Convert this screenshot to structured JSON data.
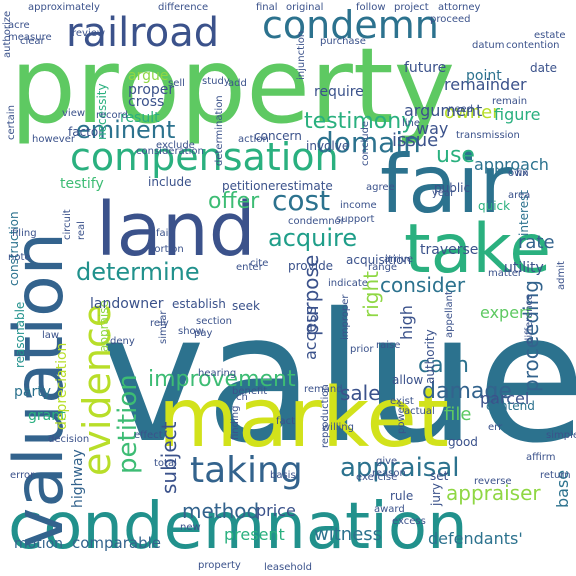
{
  "palette": {
    "background": "#ffffff",
    "lime": "#b8de29",
    "yellow_green": "#d2e21b",
    "green": "#5ec962",
    "light_green": "#8fd744",
    "mint": "#3dbc74",
    "teal_green": "#2ab07f",
    "teal": "#21918c",
    "dark_teal": "#1f9e89",
    "blue_teal": "#2c728e",
    "slate": "#33638d",
    "navy": "#3b528b",
    "indigo": "#443983",
    "purple": "#482677",
    "dark_purple": "#440154"
  },
  "words": [
    {
      "text": "value",
      "color": "#2c728e"
    },
    {
      "text": "property",
      "color": "#5ec962"
    },
    {
      "text": "condemnation",
      "color": "#21918c"
    },
    {
      "text": "market",
      "color": "#d2e21b"
    },
    {
      "text": "land",
      "color": "#3b528b"
    },
    {
      "text": "valuation",
      "color": "#33638d"
    },
    {
      "text": "fair",
      "color": "#2c728e"
    },
    {
      "text": "take",
      "color": "#2ab07f"
    },
    {
      "text": "compensation",
      "color": "#2ab07f"
    },
    {
      "text": "railroad",
      "color": "#3b528b"
    },
    {
      "text": "condemn",
      "color": "#2c728e"
    },
    {
      "text": "evidence",
      "color": "#b8de29"
    },
    {
      "text": "taking",
      "color": "#33638d"
    },
    {
      "text": "appraisal",
      "color": "#2c728e"
    },
    {
      "text": "eminent",
      "color": "#2c728e"
    },
    {
      "text": "domain",
      "color": "#2c728e"
    },
    {
      "text": "cost",
      "color": "#2c728e"
    },
    {
      "text": "determine",
      "color": "#21918c"
    },
    {
      "text": "acquire",
      "color": "#1f9e89"
    },
    {
      "text": "testimony",
      "color": "#2ab07f"
    },
    {
      "text": "offer",
      "color": "#3dbc74"
    },
    {
      "text": "petition",
      "color": "#3dbc74"
    },
    {
      "text": "improvement",
      "color": "#3dbc74"
    },
    {
      "text": "damage",
      "color": "#33638d"
    },
    {
      "text": "appraiser",
      "color": "#8fd744"
    },
    {
      "text": "purpose",
      "color": "#3b528b"
    },
    {
      "text": "right",
      "color": "#8fd744"
    },
    {
      "text": "consider",
      "color": "#2c728e"
    },
    {
      "text": "proceeding",
      "color": "#33638d"
    },
    {
      "text": "sale",
      "color": "#3b528b"
    },
    {
      "text": "cash",
      "color": "#2c728e"
    },
    {
      "text": "witness",
      "color": "#2c728e"
    },
    {
      "text": "method",
      "color": "#33638d"
    },
    {
      "text": "use",
      "color": "#2ab07f"
    },
    {
      "text": "owner",
      "color": "#b8de29"
    },
    {
      "text": "subject",
      "color": "#3b528b"
    },
    {
      "text": "issue",
      "color": "#3b528b"
    },
    {
      "text": "file",
      "color": "#5ec962"
    },
    {
      "text": "defendants'",
      "color": "#2c728e"
    },
    {
      "text": "present",
      "color": "#2ab07f"
    },
    {
      "text": "comparable",
      "color": "#33638d"
    },
    {
      "text": "motion",
      "color": "#33638d"
    },
    {
      "text": "price",
      "color": "#3b528b"
    },
    {
      "text": "base",
      "color": "#2c728e"
    },
    {
      "text": "remainder",
      "color": "#3b528b"
    },
    {
      "text": "argument",
      "color": "#3b528b"
    },
    {
      "text": "way",
      "color": "#3b528b"
    },
    {
      "text": "figure",
      "color": "#2ab07f"
    },
    {
      "text": "rate",
      "color": "#33638d"
    },
    {
      "text": "access",
      "color": "#3b528b"
    },
    {
      "text": "high",
      "color": "#3b528b"
    },
    {
      "text": "parcel",
      "color": "#3b528b"
    },
    {
      "text": "expert",
      "color": "#5ec962"
    },
    {
      "text": "construction",
      "color": "#2c728e"
    },
    {
      "text": "highway",
      "color": "#33638d"
    },
    {
      "text": "grant",
      "color": "#2ab07f"
    },
    {
      "text": "party",
      "color": "#2c728e"
    },
    {
      "text": "reasonable",
      "color": "#21918c"
    },
    {
      "text": "depreciation",
      "color": "#b8de29"
    },
    {
      "text": "appraise",
      "color": "#8fd744"
    },
    {
      "text": "landowner",
      "color": "#3b528b"
    },
    {
      "text": "establish",
      "color": "#3b528b"
    },
    {
      "text": "seek",
      "color": "#3b528b"
    },
    {
      "text": "argue",
      "color": "#8fd744"
    },
    {
      "text": "proper",
      "color": "#3b528b"
    },
    {
      "text": "cross",
      "color": "#3b528b"
    },
    {
      "text": "result",
      "color": "#2ab07f"
    },
    {
      "text": "factor",
      "color": "#3b528b"
    },
    {
      "text": "necessity",
      "color": "#2ab07f"
    },
    {
      "text": "future",
      "color": "#3b528b"
    },
    {
      "text": "point",
      "color": "#2c728e"
    },
    {
      "text": "require",
      "color": "#3b528b"
    },
    {
      "text": "concern",
      "color": "#3b528b"
    },
    {
      "text": "involve",
      "color": "#3b528b"
    },
    {
      "text": "include",
      "color": "#3b528b"
    },
    {
      "text": "petitioner",
      "color": "#3b528b"
    },
    {
      "text": "estimate",
      "color": "#3b528b"
    },
    {
      "text": "testify",
      "color": "#3dbc74"
    },
    {
      "text": "provide",
      "color": "#3b528b"
    },
    {
      "text": "acquisition",
      "color": "#3b528b"
    },
    {
      "text": "traverse",
      "color": "#3b528b"
    },
    {
      "text": "utility",
      "color": "#3b528b"
    },
    {
      "text": "public",
      "color": "#3b528b"
    },
    {
      "text": "approach",
      "color": "#2c728e"
    },
    {
      "text": "quick",
      "color": "#2ab07f"
    },
    {
      "text": "interest",
      "color": "#2c728e"
    },
    {
      "text": "section",
      "color": "#3b528b"
    },
    {
      "text": "hearing",
      "color": "#3b528b"
    },
    {
      "text": "authority",
      "color": "#3b528b"
    },
    {
      "text": "allow",
      "color": "#3b528b"
    },
    {
      "text": "contend",
      "color": "#2c728e"
    },
    {
      "text": "good",
      "color": "#3b528b"
    },
    {
      "text": "set",
      "color": "#3b528b"
    },
    {
      "text": "rule",
      "color": "#3b528b"
    },
    {
      "text": "jury",
      "color": "#3b528b"
    },
    {
      "text": "basis",
      "color": "#3b528b"
    },
    {
      "text": "new",
      "color": "#3b528b"
    },
    {
      "text": "total",
      "color": "#3b528b"
    },
    {
      "text": "exercise",
      "color": "#3b528b"
    },
    {
      "text": "award",
      "color": "#3b528b"
    },
    {
      "text": "reverse",
      "color": "#3b528b"
    },
    {
      "text": "affirm",
      "color": "#3b528b"
    },
    {
      "text": "return",
      "color": "#3b528b"
    },
    {
      "text": "simple",
      "color": "#3b528b"
    },
    {
      "text": "date",
      "color": "#3b528b"
    },
    {
      "text": "estate",
      "color": "#3b528b"
    },
    {
      "text": "datum",
      "color": "#3b528b"
    },
    {
      "text": "contention",
      "color": "#3b528b"
    },
    {
      "text": "proceed",
      "color": "#3b528b"
    },
    {
      "text": "final",
      "color": "#3b528b"
    },
    {
      "text": "original",
      "color": "#3b528b"
    },
    {
      "text": "follow",
      "color": "#3b528b"
    },
    {
      "text": "project",
      "color": "#3b528b"
    },
    {
      "text": "difference",
      "color": "#3b528b"
    },
    {
      "text": "approximately",
      "color": "#3b528b"
    },
    {
      "text": "acre",
      "color": "#3b528b"
    },
    {
      "text": "measure",
      "color": "#3b528b"
    },
    {
      "text": "authorize",
      "color": "#3b528b"
    },
    {
      "text": "clear",
      "color": "#3b528b"
    },
    {
      "text": "certain",
      "color": "#3b528b"
    },
    {
      "text": "however",
      "color": "#3b528b"
    },
    {
      "text": "view",
      "color": "#3b528b"
    },
    {
      "text": "record",
      "color": "#3b528b"
    },
    {
      "text": "exclude",
      "color": "#3b528b"
    },
    {
      "text": "consideration",
      "color": "#3b528b"
    },
    {
      "text": "study",
      "color": "#3b528b"
    },
    {
      "text": "sell",
      "color": "#3b528b"
    },
    {
      "text": "add",
      "color": "#3b528b"
    },
    {
      "text": "enter",
      "color": "#3b528b"
    },
    {
      "text": "determination",
      "color": "#3b528b"
    },
    {
      "text": "action",
      "color": "#3b528b"
    },
    {
      "text": "line",
      "color": "#3b528b"
    },
    {
      "text": "transmission",
      "color": "#3b528b"
    },
    {
      "text": "need",
      "color": "#3b528b"
    },
    {
      "text": "remain",
      "color": "#3b528b"
    },
    {
      "text": "conclude",
      "color": "#3b528b"
    },
    {
      "text": "agree",
      "color": "#3b528b"
    },
    {
      "text": "fix",
      "color": "#3b528b"
    },
    {
      "text": "year",
      "color": "#3b528b"
    },
    {
      "text": "area",
      "color": "#3b528b"
    },
    {
      "text": "own",
      "color": "#3b528b"
    },
    {
      "text": "income",
      "color": "#3b528b"
    },
    {
      "text": "support",
      "color": "#3b528b"
    },
    {
      "text": "condemnor",
      "color": "#3b528b"
    },
    {
      "text": "fail",
      "color": "#3b528b"
    },
    {
      "text": "portion",
      "color": "#3b528b"
    },
    {
      "text": "real",
      "color": "#3b528b"
    },
    {
      "text": "circuit",
      "color": "#3b528b"
    },
    {
      "text": "filing",
      "color": "#3b528b"
    },
    {
      "text": "note",
      "color": "#3b528b"
    },
    {
      "text": "indicate",
      "color": "#3b528b"
    },
    {
      "text": "arrive",
      "color": "#3b528b"
    },
    {
      "text": "range",
      "color": "#3b528b"
    },
    {
      "text": "admit",
      "color": "#3b528b"
    },
    {
      "text": "matter",
      "color": "#3b528b"
    },
    {
      "text": "cite",
      "color": "#3b528b"
    },
    {
      "text": "rely",
      "color": "#3b528b"
    },
    {
      "text": "pay",
      "color": "#3b528b"
    },
    {
      "text": "similar",
      "color": "#3b528b"
    },
    {
      "text": "deny",
      "color": "#3b528b"
    },
    {
      "text": "law",
      "color": "#3b528b"
    },
    {
      "text": "improper",
      "color": "#3b528b"
    },
    {
      "text": "raise",
      "color": "#3b528b"
    },
    {
      "text": "prior",
      "color": "#3b528b"
    },
    {
      "text": "appellant",
      "color": "#3b528b"
    },
    {
      "text": "difference",
      "color": "#3b528b"
    },
    {
      "text": "remand",
      "color": "#3b528b"
    },
    {
      "text": "exist",
      "color": "#3b528b"
    },
    {
      "text": "actual",
      "color": "#3b528b"
    },
    {
      "text": "benefit",
      "color": "#3b528b"
    },
    {
      "text": "finding",
      "color": "#3b528b"
    },
    {
      "text": "reproduction",
      "color": "#3b528b"
    },
    {
      "text": "power",
      "color": "#3b528b"
    },
    {
      "text": "err",
      "color": "#3b528b"
    },
    {
      "text": "error",
      "color": "#3b528b"
    },
    {
      "text": "effect",
      "color": "#3b528b"
    },
    {
      "text": "give",
      "color": "#3b528b"
    },
    {
      "text": "reason",
      "color": "#3b528b"
    },
    {
      "text": "excess",
      "color": "#3b528b"
    },
    {
      "text": "property",
      "color": "#3b528b"
    },
    {
      "text": "leasehold",
      "color": "#3b528b"
    },
    {
      "text": "willing",
      "color": "#3b528b"
    },
    {
      "text": "show",
      "color": "#3b528b"
    },
    {
      "text": "ch",
      "color": "#3b528b"
    },
    {
      "text": "fact",
      "color": "#3b528b"
    },
    {
      "text": "decision",
      "color": "#3b528b"
    },
    {
      "text": "attorney",
      "color": "#3b528b"
    },
    {
      "text": "review",
      "color": "#3b528b"
    },
    {
      "text": "injunction",
      "color": "#3b528b"
    },
    {
      "text": "purchase",
      "color": "#3b528b"
    }
  ]
}
